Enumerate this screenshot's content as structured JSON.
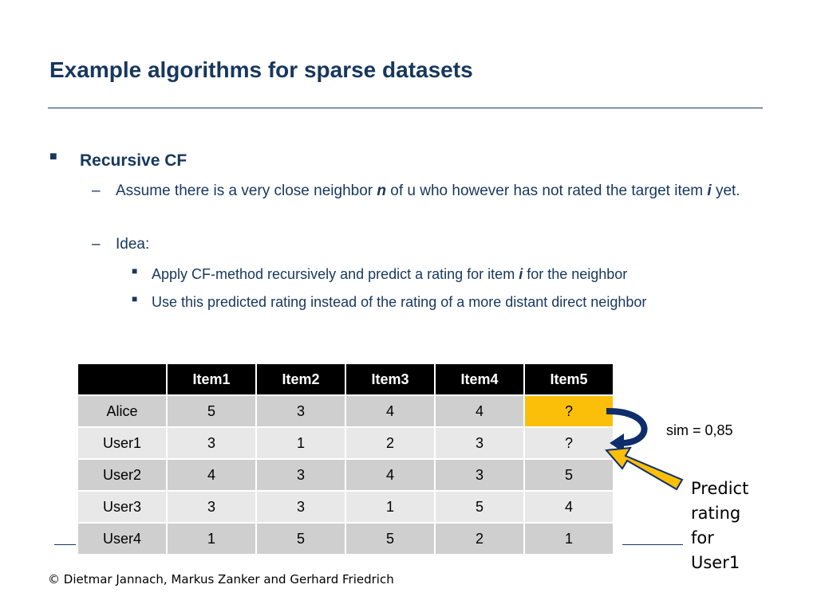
{
  "header": {
    "title": "Example algorithms for sparse datasets"
  },
  "bullets": {
    "main": "Recursive CF",
    "sub1": [
      "Assume there is a very close neighbor ",
      "n",
      " of u who however has not rated the target item ",
      "i",
      " yet."
    ],
    "sub2": "Idea:",
    "subsub1": [
      "Apply CF-method recursively and predict a rating for item ",
      "i",
      " for the neighbor"
    ],
    "subsub2": "Use this predicted rating instead of the rating of a more distant direct neighbor"
  },
  "table": {
    "columns": [
      "Item1",
      "Item2",
      "Item3",
      "Item4",
      "Item5"
    ],
    "rows": [
      [
        "Alice",
        5,
        3,
        4,
        4,
        "?"
      ],
      [
        "User1",
        3,
        1,
        2,
        3,
        "?"
      ],
      [
        "User2",
        4,
        3,
        4,
        3,
        5
      ],
      [
        "User3",
        3,
        3,
        1,
        5,
        4
      ],
      [
        "User4",
        1,
        5,
        5,
        2,
        1
      ]
    ]
  },
  "annotations": {
    "sim": "sim = 0,85",
    "predict": [
      "Predict",
      "rating",
      "for",
      "User1"
    ]
  },
  "footer": "© Dietmar Jannach, Markus Zanker and Gerhard Friedrich"
}
